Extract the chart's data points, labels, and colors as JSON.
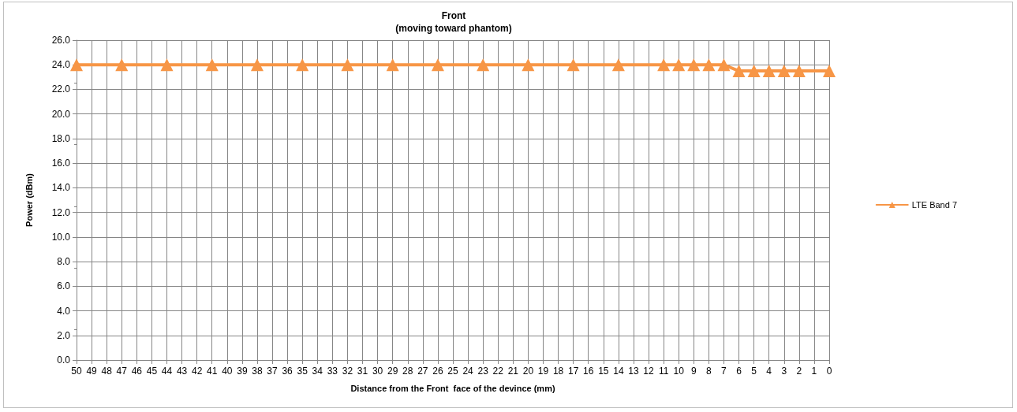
{
  "chart_data": {
    "type": "line",
    "title": "Front\n(moving toward phantom)",
    "xlabel": "Distance from the Front  face of the devince (mm)",
    "ylabel": "Power (dBm)",
    "categories": [
      "50",
      "49",
      "48",
      "47",
      "46",
      "45",
      "44",
      "43",
      "42",
      "41",
      "40",
      "39",
      "38",
      "37",
      "36",
      "35",
      "34",
      "33",
      "32",
      "31",
      "30",
      "29",
      "28",
      "27",
      "26",
      "25",
      "24",
      "23",
      "22",
      "21",
      "20",
      "19",
      "18",
      "17",
      "16",
      "15",
      "14",
      "13",
      "12",
      "11",
      "10",
      "9",
      "8",
      "7",
      "6",
      "5",
      "4",
      "3",
      "2",
      "1",
      "0"
    ],
    "series": [
      {
        "name": "LTE Band 7",
        "color": "#f79646",
        "values": [
          24.0,
          null,
          null,
          24.0,
          null,
          null,
          24.0,
          null,
          null,
          24.0,
          null,
          null,
          24.0,
          null,
          null,
          24.0,
          null,
          null,
          24.0,
          null,
          null,
          24.0,
          null,
          null,
          24.0,
          null,
          null,
          24.0,
          null,
          null,
          24.0,
          null,
          null,
          24.0,
          null,
          null,
          24.0,
          null,
          null,
          24.0,
          24.0,
          24.0,
          24.0,
          24.0,
          23.5,
          23.5,
          23.5,
          23.5,
          23.5,
          null,
          23.5
        ]
      }
    ],
    "ylim": [
      0,
      26
    ],
    "yticks": [
      {
        "value": 0,
        "label": "0.0"
      },
      {
        "value": 2,
        "label": "2.0"
      },
      {
        "value": 4,
        "label": "4.0"
      },
      {
        "value": 6,
        "label": "6.0"
      },
      {
        "value": 8,
        "label": "8.0"
      },
      {
        "value": 10,
        "label": "10.0"
      },
      {
        "value": 12,
        "label": "12.0"
      },
      {
        "value": 14,
        "label": "14.0"
      },
      {
        "value": 16,
        "label": "16.0"
      },
      {
        "value": 18,
        "label": "18.0"
      },
      {
        "value": 20,
        "label": "20.0"
      },
      {
        "value": 22,
        "label": "22.0"
      },
      {
        "value": 24,
        "label": "24.0"
      },
      {
        "value": 26,
        "label": "26.0"
      }
    ],
    "grid": true,
    "legend": "right",
    "marker": "triangle",
    "line_style": "solid"
  }
}
